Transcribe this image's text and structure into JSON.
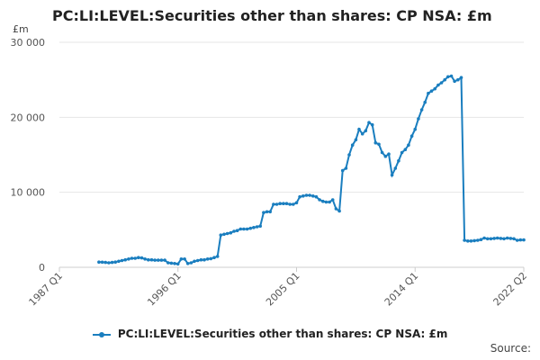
{
  "chart_data": {
    "type": "line",
    "title": "PC:LI:LEVEL:Securities other than shares: CP NSA: £m",
    "ylabel": "£m",
    "source": "Source:",
    "ylim": [
      0,
      30000
    ],
    "y_ticks": [
      {
        "value": 0,
        "label": "0"
      },
      {
        "value": 10000,
        "label": "10 000"
      },
      {
        "value": 20000,
        "label": "20 000"
      },
      {
        "value": 30000,
        "label": "30 000"
      }
    ],
    "x_ticks": [
      {
        "value": 1987.0,
        "label": "1987 Q1"
      },
      {
        "value": 1996.0,
        "label": "1996 Q1"
      },
      {
        "value": 2005.0,
        "label": "2005 Q1"
      },
      {
        "value": 2014.0,
        "label": "2014 Q1"
      },
      {
        "value": 2022.25,
        "label": "2022 Q2"
      }
    ],
    "xlim": [
      1987.0,
      2022.25
    ],
    "grid": true,
    "legend_position": "bottom",
    "series": [
      {
        "name": "PC:LI:LEVEL:Securities other than shares: CP NSA: £m",
        "color": "#1a7ebf",
        "points": [
          [
            1990.0,
            700
          ],
          [
            1990.25,
            680
          ],
          [
            1990.5,
            650
          ],
          [
            1990.75,
            600
          ],
          [
            1991.0,
            650
          ],
          [
            1991.25,
            700
          ],
          [
            1991.5,
            800
          ],
          [
            1991.75,
            900
          ],
          [
            1992.0,
            1000
          ],
          [
            1992.25,
            1100
          ],
          [
            1992.5,
            1200
          ],
          [
            1992.75,
            1200
          ],
          [
            1993.0,
            1300
          ],
          [
            1993.25,
            1250
          ],
          [
            1993.5,
            1100
          ],
          [
            1993.75,
            1000
          ],
          [
            1994.0,
            1000
          ],
          [
            1994.25,
            950
          ],
          [
            1994.5,
            950
          ],
          [
            1994.75,
            950
          ],
          [
            1995.0,
            950
          ],
          [
            1995.25,
            600
          ],
          [
            1995.5,
            550
          ],
          [
            1995.75,
            500
          ],
          [
            1996.0,
            450
          ],
          [
            1996.25,
            1100
          ],
          [
            1996.5,
            1100
          ],
          [
            1996.75,
            500
          ],
          [
            1997.0,
            600
          ],
          [
            1997.25,
            800
          ],
          [
            1997.5,
            900
          ],
          [
            1997.75,
            1000
          ],
          [
            1998.0,
            1000
          ],
          [
            1998.25,
            1100
          ],
          [
            1998.5,
            1150
          ],
          [
            1998.75,
            1300
          ],
          [
            1999.0,
            1450
          ],
          [
            1999.25,
            4300
          ],
          [
            1999.5,
            4400
          ],
          [
            1999.75,
            4500
          ],
          [
            2000.0,
            4600
          ],
          [
            2000.25,
            4800
          ],
          [
            2000.5,
            4900
          ],
          [
            2000.75,
            5100
          ],
          [
            2001.0,
            5100
          ],
          [
            2001.25,
            5100
          ],
          [
            2001.5,
            5200
          ],
          [
            2001.75,
            5300
          ],
          [
            2002.0,
            5400
          ],
          [
            2002.25,
            5500
          ],
          [
            2002.5,
            7300
          ],
          [
            2002.75,
            7400
          ],
          [
            2003.0,
            7400
          ],
          [
            2003.25,
            8400
          ],
          [
            2003.5,
            8400
          ],
          [
            2003.75,
            8500
          ],
          [
            2004.0,
            8500
          ],
          [
            2004.25,
            8500
          ],
          [
            2004.5,
            8400
          ],
          [
            2004.75,
            8400
          ],
          [
            2005.0,
            8600
          ],
          [
            2005.25,
            9400
          ],
          [
            2005.5,
            9500
          ],
          [
            2005.75,
            9600
          ],
          [
            2006.0,
            9600
          ],
          [
            2006.25,
            9500
          ],
          [
            2006.5,
            9400
          ],
          [
            2006.75,
            9000
          ],
          [
            2007.0,
            8800
          ],
          [
            2007.25,
            8700
          ],
          [
            2007.5,
            8700
          ],
          [
            2007.75,
            9000
          ],
          [
            2008.0,
            7800
          ],
          [
            2008.25,
            7500
          ],
          [
            2008.5,
            12900
          ],
          [
            2008.75,
            13200
          ],
          [
            2009.0,
            15000
          ],
          [
            2009.25,
            16300
          ],
          [
            2009.5,
            17000
          ],
          [
            2009.75,
            18400
          ],
          [
            2010.0,
            17800
          ],
          [
            2010.25,
            18200
          ],
          [
            2010.5,
            19300
          ],
          [
            2010.75,
            19000
          ],
          [
            2011.0,
            16600
          ],
          [
            2011.25,
            16400
          ],
          [
            2011.5,
            15300
          ],
          [
            2011.75,
            14800
          ],
          [
            2012.0,
            15100
          ],
          [
            2012.25,
            12300
          ],
          [
            2012.5,
            13200
          ],
          [
            2012.75,
            14200
          ],
          [
            2013.0,
            15300
          ],
          [
            2013.25,
            15700
          ],
          [
            2013.5,
            16300
          ],
          [
            2013.75,
            17500
          ],
          [
            2014.0,
            18400
          ],
          [
            2014.25,
            19800
          ],
          [
            2014.5,
            21000
          ],
          [
            2014.75,
            22000
          ],
          [
            2015.0,
            23200
          ],
          [
            2015.25,
            23500
          ],
          [
            2015.5,
            23800
          ],
          [
            2015.75,
            24300
          ],
          [
            2016.0,
            24600
          ],
          [
            2016.25,
            25000
          ],
          [
            2016.5,
            25400
          ],
          [
            2016.75,
            25500
          ],
          [
            2017.0,
            24800
          ],
          [
            2017.25,
            25000
          ],
          [
            2017.5,
            25300
          ],
          [
            2017.75,
            3600
          ],
          [
            2018.0,
            3500
          ],
          [
            2018.25,
            3500
          ],
          [
            2018.5,
            3550
          ],
          [
            2018.75,
            3600
          ],
          [
            2019.0,
            3700
          ],
          [
            2019.25,
            3900
          ],
          [
            2019.5,
            3800
          ],
          [
            2019.75,
            3800
          ],
          [
            2020.0,
            3850
          ],
          [
            2020.25,
            3900
          ],
          [
            2020.5,
            3850
          ],
          [
            2020.75,
            3800
          ],
          [
            2021.0,
            3900
          ],
          [
            2021.25,
            3850
          ],
          [
            2021.5,
            3800
          ],
          [
            2021.75,
            3600
          ],
          [
            2022.0,
            3650
          ],
          [
            2022.25,
            3650
          ]
        ]
      }
    ]
  }
}
